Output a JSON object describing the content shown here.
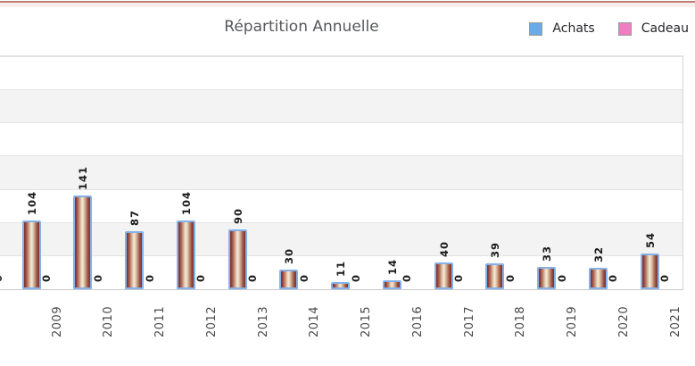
{
  "header": {
    "title": "Répartition Annuelle"
  },
  "legend": {
    "items": [
      {
        "label": "Achats",
        "color": "#6aaae6"
      },
      {
        "label": "Cadeau",
        "color": "#ee7fc1"
      }
    ]
  },
  "chart_data": {
    "type": "bar",
    "title": "Répartition Annuelle",
    "categories": [
      "2009",
      "2010",
      "2011",
      "2012",
      "2013",
      "2014",
      "2015",
      "2016",
      "2017",
      "2018",
      "2019",
      "2020",
      "2021"
    ],
    "series": [
      {
        "name": "Achats",
        "legend_color": "#6aaae6",
        "values": [
          104,
          141,
          87,
          104,
          90,
          30,
          11,
          14,
          40,
          39,
          33,
          32,
          54
        ]
      },
      {
        "name": "Cadeau",
        "legend_color": "#ee7fc1",
        "values": [
          0,
          0,
          0,
          0,
          0,
          0,
          0,
          0,
          0,
          0,
          0,
          0,
          0
        ]
      }
    ],
    "ylim": [
      0,
      350
    ],
    "grid_step": 50,
    "grid_bands": true,
    "legend_position": "top-right",
    "value_labels_rotated": true,
    "x_labels_rotated": true,
    "left_clipped_zero_label": "0",
    "xlabel": "",
    "ylabel": ""
  },
  "colors": {
    "accent_line": "#bd7e70",
    "accent_band": "#f8eeec",
    "band_alt": "#f3f3f3",
    "band_base": "#ffffff",
    "grid_line": "#e3e3e3",
    "plot_top_line": "#e2e2e2",
    "axis_line": "#c9c9c9",
    "plot_right_line": "#d6d6d6",
    "bar_border": "#84b1e9",
    "bar_dark": "#7f302e",
    "bar_light": "#f4ead8",
    "value_label": "#1b1b1b",
    "year_label": "#4a4a4a",
    "title": "#56575b",
    "legend_text": "#26262a",
    "legend_swatch_border": "#9a9a9a"
  }
}
